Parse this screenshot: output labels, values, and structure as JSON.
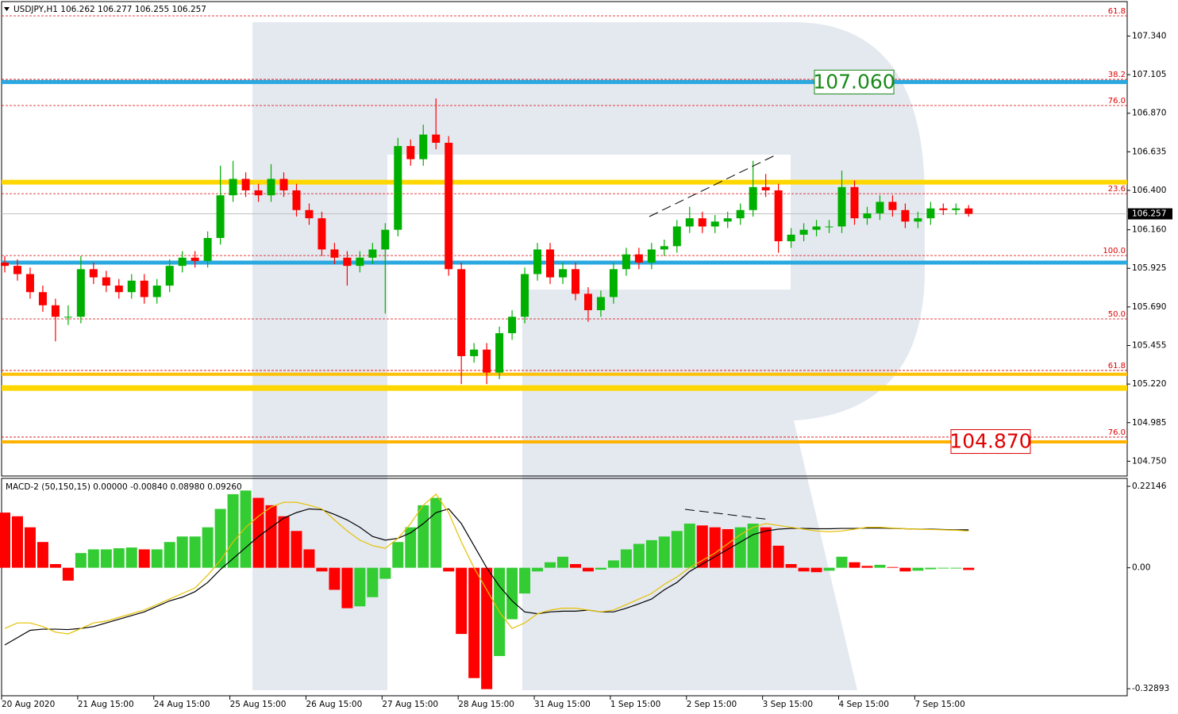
{
  "chart_data": [
    {
      "type": "candlestick",
      "title": "USDJPY,H1  106.262 106.277 106.255 106.257",
      "xlim": [
        -0.25,
        88.5
      ],
      "ylim": [
        104.66,
        107.55
      ],
      "yticks": [
        {
          "value": 107.34,
          "label": "107.340"
        },
        {
          "value": 107.105,
          "label": "107.105"
        },
        {
          "value": 106.87,
          "label": "106.870"
        },
        {
          "value": 106.635,
          "label": "106.635"
        },
        {
          "value": 106.4,
          "label": "106.400"
        },
        {
          "value": 106.16,
          "label": "106.160"
        },
        {
          "value": 105.925,
          "label": "105.925"
        },
        {
          "value": 105.69,
          "label": "105.690"
        },
        {
          "value": 105.455,
          "label": "105.455"
        },
        {
          "value": 105.22,
          "label": "105.220"
        },
        {
          "value": 104.985,
          "label": "104.985"
        },
        {
          "value": 104.75,
          "label": "104.750"
        }
      ],
      "up_color": "#00b000",
      "down_color": "#ff0000",
      "open": [
        105.96,
        105.94,
        105.89,
        105.78,
        105.7,
        105.63,
        105.63,
        105.92,
        105.87,
        105.82,
        105.78,
        105.85,
        105.75,
        105.82,
        105.94,
        105.99,
        105.97,
        106.11,
        106.37,
        106.47,
        106.4,
        106.37,
        106.47,
        106.4,
        106.28,
        106.23,
        106.04,
        105.99,
        105.94,
        105.99,
        106.04,
        106.16,
        106.67,
        106.59,
        106.74,
        106.69,
        105.92,
        105.39,
        105.43,
        105.29,
        105.53,
        105.63,
        105.89,
        106.04,
        105.87,
        105.92,
        105.77,
        105.67,
        105.75,
        105.92,
        106.01,
        105.96,
        106.04,
        106.06,
        106.18,
        106.23,
        106.18,
        106.21,
        106.23,
        106.28,
        106.42,
        106.4,
        106.09,
        106.13,
        106.16,
        106.18,
        106.18,
        106.42,
        106.23,
        106.26,
        106.33,
        106.28,
        106.21,
        106.23,
        106.29,
        106.28,
        106.29
      ],
      "high": [
        106.0,
        105.98,
        105.93,
        105.82,
        105.74,
        105.7,
        106.0,
        105.96,
        105.91,
        105.86,
        105.89,
        105.89,
        105.86,
        105.98,
        106.03,
        106.03,
        106.15,
        106.55,
        106.58,
        106.51,
        106.44,
        106.56,
        106.51,
        106.44,
        106.32,
        106.27,
        106.08,
        106.03,
        106.03,
        106.08,
        106.2,
        106.72,
        106.71,
        106.8,
        106.96,
        106.73,
        105.96,
        105.47,
        105.47,
        105.57,
        105.67,
        105.93,
        106.08,
        106.08,
        105.96,
        105.96,
        105.81,
        105.79,
        105.96,
        106.05,
        106.05,
        106.08,
        106.1,
        106.22,
        106.3,
        106.27,
        106.25,
        106.27,
        106.32,
        106.58,
        106.5,
        106.44,
        106.17,
        106.2,
        106.22,
        106.22,
        106.52,
        106.46,
        106.3,
        106.37,
        106.37,
        106.32,
        106.27,
        106.33,
        106.32,
        106.32,
        106.31
      ],
      "low": [
        105.9,
        105.85,
        105.74,
        105.66,
        105.48,
        105.58,
        105.59,
        105.83,
        105.78,
        105.74,
        105.74,
        105.71,
        105.71,
        105.78,
        105.9,
        105.93,
        105.93,
        106.07,
        106.33,
        106.36,
        106.33,
        106.33,
        106.36,
        106.24,
        106.19,
        106.0,
        105.95,
        105.82,
        105.9,
        105.95,
        105.65,
        106.12,
        106.55,
        106.55,
        106.65,
        105.88,
        105.22,
        105.35,
        105.22,
        105.25,
        105.49,
        105.59,
        105.85,
        105.83,
        105.83,
        105.73,
        105.6,
        105.63,
        105.71,
        105.88,
        105.92,
        105.92,
        106.0,
        106.02,
        106.14,
        106.14,
        106.14,
        106.17,
        106.19,
        106.24,
        106.36,
        106.02,
        106.05,
        106.09,
        106.12,
        106.14,
        106.14,
        106.19,
        106.19,
        106.22,
        106.24,
        106.17,
        106.17,
        106.19,
        106.25,
        106.25,
        106.24
      ],
      "close": [
        105.94,
        105.89,
        105.78,
        105.7,
        105.63,
        105.63,
        105.92,
        105.87,
        105.82,
        105.78,
        105.85,
        105.75,
        105.82,
        105.94,
        105.99,
        105.97,
        106.11,
        106.37,
        106.47,
        106.4,
        106.37,
        106.47,
        106.4,
        106.28,
        106.23,
        106.04,
        105.99,
        105.94,
        105.99,
        106.04,
        106.16,
        106.67,
        106.59,
        106.74,
        106.69,
        105.92,
        105.39,
        105.43,
        105.29,
        105.53,
        105.63,
        105.89,
        106.04,
        105.87,
        105.92,
        105.77,
        105.67,
        105.75,
        105.92,
        106.01,
        105.96,
        106.04,
        106.06,
        106.18,
        106.23,
        106.18,
        106.21,
        106.23,
        106.28,
        106.42,
        106.4,
        106.09,
        106.13,
        106.16,
        106.18,
        106.18,
        106.42,
        106.23,
        106.26,
        106.33,
        106.28,
        106.21,
        106.23,
        106.29,
        106.28,
        106.29,
        106.257
      ],
      "levels": [
        {
          "value": 107.06,
          "color": "#2aa8e0",
          "width": 5
        },
        {
          "value": 105.96,
          "color": "#2aa8e0",
          "width": 5
        },
        {
          "value": 106.45,
          "color": "#ffd700",
          "width": 6
        },
        {
          "value": 105.28,
          "color": "#ffc107",
          "width": 4
        },
        {
          "value": 105.196,
          "color": "#ffd700",
          "width": 7
        },
        {
          "value": 104.868,
          "color": "#ffb300",
          "width": 4
        }
      ],
      "fib_levels": [
        {
          "value": 107.463,
          "label": "61.8"
        },
        {
          "value": 107.076,
          "label": "38.2"
        },
        {
          "value": 106.917,
          "label": "76.0"
        },
        {
          "value": 106.38,
          "label": "23.6"
        },
        {
          "value": 106.003,
          "label": "100.0"
        },
        {
          "value": 105.617,
          "label": "50.0"
        },
        {
          "value": 105.303,
          "label": "61.8"
        },
        {
          "value": 104.897,
          "label": "76.0"
        }
      ],
      "annotations": [
        {
          "value": 107.06,
          "label": "107.060",
          "color": "#1a8a1a"
        },
        {
          "value": 104.87,
          "label": "104.870",
          "color": "#e00000"
        }
      ],
      "last_price": {
        "value": 106.257,
        "label": "106.257"
      }
    },
    {
      "type": "macd",
      "title": "MACD-2 (50,150,15) 0.00000 -0.00840 0.08980 0.09260",
      "xlim": [
        -0.25,
        88.5
      ],
      "ylim": [
        -0.348,
        0.243
      ],
      "yticks": [
        0.22146,
        {
          "value": 0,
          "label": "0.00"
        },
        -0.32893
      ],
      "xticks": [
        {
          "value": -0.25,
          "label": "20 Aug 2020"
        },
        {
          "value": 5.75,
          "label": "21 Aug 15:00"
        },
        {
          "value": 11.75,
          "label": "24 Aug 15:00"
        },
        {
          "value": 17.75,
          "label": "25 Aug 15:00"
        },
        {
          "value": 23.75,
          "label": "26 Aug 15:00"
        },
        {
          "value": 29.75,
          "label": "27 Aug 15:00"
        },
        {
          "value": 35.75,
          "label": "28 Aug 15:00"
        },
        {
          "value": 41.75,
          "label": "31 Aug 15:00"
        },
        {
          "value": 47.75,
          "label": "1 Sep 15:00"
        },
        {
          "value": 53.75,
          "label": "2 Sep 15:00"
        },
        {
          "value": 59.75,
          "label": "3 Sep 15:00"
        },
        {
          "value": 65.75,
          "label": "4 Sep 15:00"
        },
        {
          "value": 71.75,
          "label": "7 Sep 15:00"
        }
      ],
      "rise_color": "#33cc33",
      "fall_color": "#ff0000",
      "histogram": [
        0.15,
        0.14,
        0.11,
        0.07,
        0.01,
        -0.035,
        0.04,
        0.05,
        0.05,
        0.053,
        0.055,
        0.05,
        0.05,
        0.07,
        0.085,
        0.085,
        0.11,
        0.16,
        0.2,
        0.21,
        0.19,
        0.17,
        0.14,
        0.1,
        0.05,
        -0.01,
        -0.06,
        -0.11,
        -0.105,
        -0.08,
        -0.03,
        0.07,
        0.11,
        0.17,
        0.19,
        -0.01,
        -0.18,
        -0.3,
        -0.33,
        -0.24,
        -0.14,
        -0.07,
        -0.01,
        0.015,
        0.03,
        0.01,
        -0.01,
        -0.005,
        0.02,
        0.05,
        0.065,
        0.075,
        0.085,
        0.1,
        0.12,
        0.115,
        0.11,
        0.105,
        0.11,
        0.12,
        0.11,
        0.06,
        0.01,
        -0.01,
        -0.012,
        -0.008,
        0.03,
        0.015,
        0.005,
        0.008,
        0.002,
        -0.01,
        -0.008,
        -0.004,
        -0.002,
        -0.002,
        -0.006
      ],
      "series": [
        {
          "color": "#000000",
          "values": [
            -0.21,
            -0.19,
            -0.17,
            -0.167,
            -0.167,
            -0.168,
            -0.165,
            -0.16,
            -0.15,
            -0.14,
            -0.13,
            -0.12,
            -0.105,
            -0.09,
            -0.08,
            -0.065,
            -0.04,
            -0.005,
            0.025,
            0.055,
            0.085,
            0.11,
            0.135,
            0.15,
            0.16,
            0.158,
            0.145,
            0.13,
            0.11,
            0.085,
            0.075,
            0.08,
            0.095,
            0.12,
            0.15,
            0.16,
            0.12,
            0.06,
            0.0,
            -0.05,
            -0.09,
            -0.12,
            -0.125,
            -0.12,
            -0.118,
            -0.118,
            -0.115,
            -0.12,
            -0.12,
            -0.11,
            -0.098,
            -0.085,
            -0.06,
            -0.04,
            -0.01,
            0.01,
            0.03,
            0.05,
            0.07,
            0.09,
            0.1,
            0.105,
            0.107,
            0.107,
            0.106,
            0.106,
            0.107,
            0.107,
            0.108,
            0.108,
            0.107,
            0.106,
            0.105,
            0.105,
            0.104,
            0.103,
            0.103
          ]
        },
        {
          "color": "#e6c000",
          "values": [
            -0.165,
            -0.15,
            -0.15,
            -0.16,
            -0.175,
            -0.18,
            -0.165,
            -0.15,
            -0.145,
            -0.135,
            -0.125,
            -0.115,
            -0.1,
            -0.085,
            -0.07,
            -0.055,
            -0.02,
            0.02,
            0.07,
            0.11,
            0.14,
            0.165,
            0.178,
            0.178,
            0.17,
            0.16,
            0.13,
            0.1,
            0.075,
            0.06,
            0.053,
            0.08,
            0.12,
            0.17,
            0.2,
            0.15,
            0.07,
            0.0,
            -0.06,
            -0.12,
            -0.165,
            -0.15,
            -0.125,
            -0.115,
            -0.11,
            -0.11,
            -0.115,
            -0.12,
            -0.115,
            -0.1,
            -0.085,
            -0.07,
            -0.045,
            -0.025,
            0.0,
            0.02,
            0.04,
            0.065,
            0.09,
            0.11,
            0.12,
            0.115,
            0.11,
            0.105,
            0.1,
            0.098,
            0.1,
            0.105,
            0.11,
            0.11,
            0.108,
            0.106,
            0.105,
            0.104,
            0.103,
            0.102,
            0.1
          ]
        }
      ]
    }
  ]
}
